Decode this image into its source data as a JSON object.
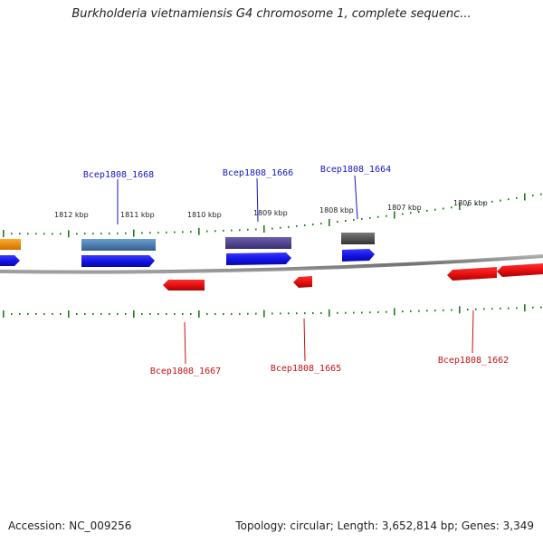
{
  "header": {
    "title": "Burkholderia vietnamiensis G4 chromosome 1, complete sequenc..."
  },
  "footer": {
    "accession": "Accession: NC_009256",
    "topology": "Topology: circular; Length: 3,652,814 bp; Genes: 3,349"
  },
  "scale_labels": [
    "1812 kbp",
    "1811 kbp",
    "1810 kbp",
    "1809 kbp",
    "1808 kbp",
    "1807 kbp",
    "1806 kbp"
  ],
  "genes_forward": [
    {
      "label": "Bcep1808_1668",
      "color": "#1515c8"
    },
    {
      "label": "Bcep1808_1666",
      "color": "#1515c8"
    },
    {
      "label": "Bcep1808_1664",
      "color": "#1515c8"
    }
  ],
  "genes_reverse": [
    {
      "label": "Bcep1808_1667",
      "color": "#cc1010"
    },
    {
      "label": "Bcep1808_1665",
      "color": "#cc1010"
    },
    {
      "label": "Bcep1808_1662",
      "color": "#cc1010"
    }
  ],
  "colors": {
    "forward_strand": "#1515e6",
    "reverse_strand": "#e60e0e",
    "tick": "#1f7a1f",
    "backbone": "#7a7a7a",
    "feature_orange": "#f08a00",
    "feature_steelblue": "#4a7fb0",
    "feature_purple": "#4b3f8f",
    "feature_gray": "#555555"
  }
}
